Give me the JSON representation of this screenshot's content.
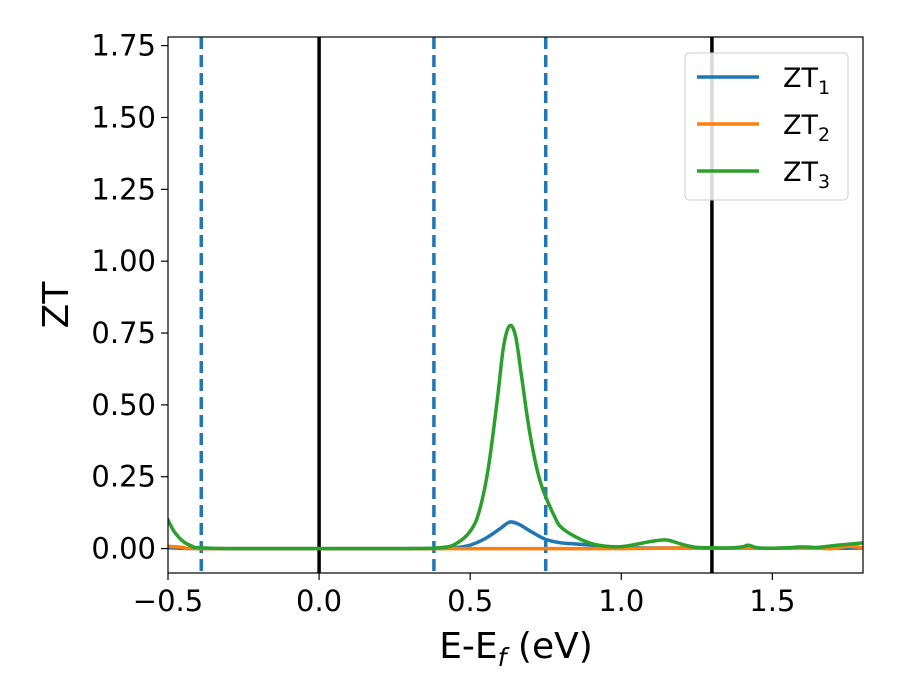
{
  "chart_data": {
    "type": "line",
    "xlabel": {
      "main": "E-E",
      "sub": "f",
      "unit": " (eV)"
    },
    "ylabel": "ZT",
    "xlim": [
      -0.5,
      1.8
    ],
    "ylim": [
      -0.085,
      1.78
    ],
    "xticks": [
      -0.5,
      0.0,
      0.5,
      1.0,
      1.5
    ],
    "xtick_labels": [
      "−0.5",
      "0.0",
      "0.5",
      "1.0",
      "1.5"
    ],
    "yticks": [
      0.0,
      0.25,
      0.5,
      0.75,
      1.0,
      1.25,
      1.5,
      1.75
    ],
    "ytick_labels": [
      "0.00",
      "0.25",
      "0.50",
      "0.75",
      "1.00",
      "1.25",
      "1.50",
      "1.75"
    ],
    "grid": false,
    "legend_position": "top-right",
    "series": [
      {
        "name": "ZT",
        "name_sub": "1",
        "color": "#1f77b4",
        "x": [
          -0.5,
          -0.4,
          0.0,
          0.38,
          0.45,
          0.5,
          0.55,
          0.6,
          0.63,
          0.66,
          0.7,
          0.75,
          0.8,
          0.85,
          0.9,
          0.95,
          1.0,
          1.1,
          1.2,
          1.3,
          1.4,
          1.5,
          1.6,
          1.7,
          1.8
        ],
        "y": [
          0.003,
          0.0,
          0.0,
          0.0,
          0.003,
          0.012,
          0.035,
          0.07,
          0.092,
          0.085,
          0.06,
          0.032,
          0.02,
          0.016,
          0.012,
          0.006,
          0.003,
          0.002,
          0.002,
          0.001,
          0.002,
          0.001,
          0.002,
          0.001,
          0.002
        ]
      },
      {
        "name": "ZT",
        "name_sub": "2",
        "color": "#ff7f0e",
        "x": [
          -0.5,
          -0.45,
          -0.4,
          0.0,
          0.5,
          1.0,
          1.2,
          1.4,
          1.6,
          1.7,
          1.75,
          1.8
        ],
        "y": [
          0.008,
          0.004,
          0.0,
          0.0,
          0.0,
          0.0,
          0.002,
          0.001,
          0.002,
          0.0,
          0.008,
          0.003
        ]
      },
      {
        "name": "ZT",
        "name_sub": "3",
        "color": "#2ca02c",
        "x": [
          -0.5,
          -0.48,
          -0.45,
          -0.42,
          -0.4,
          -0.3,
          0.0,
          0.3,
          0.4,
          0.45,
          0.5,
          0.53,
          0.56,
          0.59,
          0.61,
          0.63,
          0.65,
          0.67,
          0.69,
          0.71,
          0.73,
          0.75,
          0.78,
          0.8,
          0.85,
          0.9,
          0.95,
          1.0,
          1.05,
          1.1,
          1.15,
          1.2,
          1.25,
          1.3,
          1.35,
          1.4,
          1.42,
          1.45,
          1.5,
          1.55,
          1.6,
          1.65,
          1.7,
          1.75,
          1.8
        ],
        "y": [
          0.1,
          0.06,
          0.025,
          0.008,
          0.003,
          0.0,
          0.0,
          0.0,
          0.003,
          0.015,
          0.06,
          0.13,
          0.28,
          0.52,
          0.7,
          0.775,
          0.74,
          0.6,
          0.45,
          0.33,
          0.24,
          0.18,
          0.11,
          0.075,
          0.04,
          0.018,
          0.008,
          0.007,
          0.015,
          0.025,
          0.03,
          0.015,
          0.004,
          0.003,
          0.002,
          0.006,
          0.012,
          0.003,
          0.001,
          0.003,
          0.006,
          0.004,
          0.01,
          0.015,
          0.02
        ]
      }
    ],
    "vlines_solid": [
      0.0,
      1.3
    ],
    "vlines_dashed": [
      -0.39,
      0.38,
      0.75
    ],
    "vline_solid_color": "#000000",
    "vline_dashed_color": "#1f77b4"
  }
}
